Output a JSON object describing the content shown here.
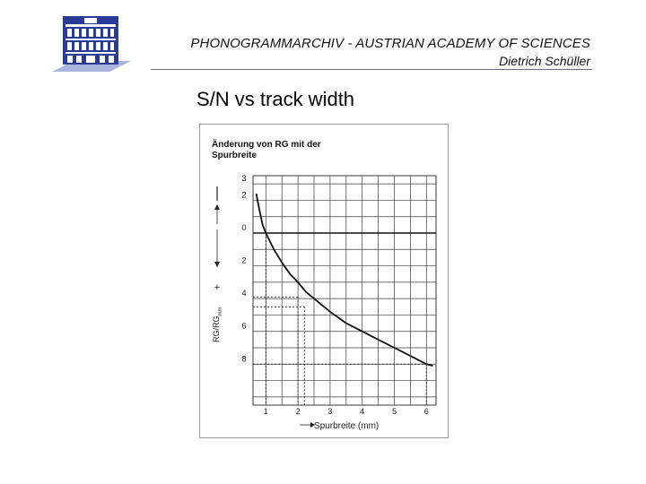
{
  "header": {
    "title": "PHONOGRAMMARCHIV - AUSTRIAN ACADEMY OF SCIENCES",
    "author": "Dietrich Schüller"
  },
  "slide": {
    "title": "S/N vs track width"
  },
  "colors": {
    "logo_blue": "#2a3d96",
    "logo_shadow": "#a9b6db",
    "rule": "#6a6a86",
    "grid": "#3a3a3a"
  },
  "chart_data": {
    "type": "line",
    "title": "Änderung von RG mit der Spurbreite",
    "xlabel": "Spurbreite (mm)",
    "ylabel": "RG/RG",
    "ylabel_sub": "mm",
    "y_annot_minus": "–",
    "y_annot_plus": "+",
    "xlim": [
      0.6,
      6.3
    ],
    "ylim": [
      3.5,
      -10.5
    ],
    "x_ticks": [
      1,
      2,
      3,
      4,
      5,
      6
    ],
    "x_tick_labels": [
      "1",
      "2",
      "3",
      "4",
      "5",
      "6"
    ],
    "y_ticks": [
      3,
      2,
      0,
      -2,
      -4,
      -6,
      -8
    ],
    "y_tick_labels": [
      "3",
      "2",
      "0",
      "2",
      "4",
      "6",
      "8"
    ],
    "grid": true,
    "series": [
      {
        "x": [
          0.7,
          0.8,
          0.9,
          1.0,
          1.25,
          1.5,
          1.75,
          2.0,
          2.25,
          2.5,
          3.0,
          3.5,
          4.0,
          4.5,
          5.0,
          5.5,
          6.0,
          6.2
        ],
        "y": [
          2.4,
          1.4,
          0.5,
          0.0,
          -1.0,
          -1.8,
          -2.5,
          -3.0,
          -3.6,
          -4.0,
          -4.8,
          -5.5,
          -6.0,
          -6.5,
          -7.0,
          -7.5,
          -8.0,
          -8.1
        ]
      }
    ],
    "reference_lines": [
      {
        "x": 1.0,
        "y": 0.0
      },
      {
        "x": 2.0,
        "y": -3.9
      },
      {
        "x": 2.2,
        "y": -4.5
      },
      {
        "x": 6.0,
        "y": -8.0
      }
    ]
  }
}
